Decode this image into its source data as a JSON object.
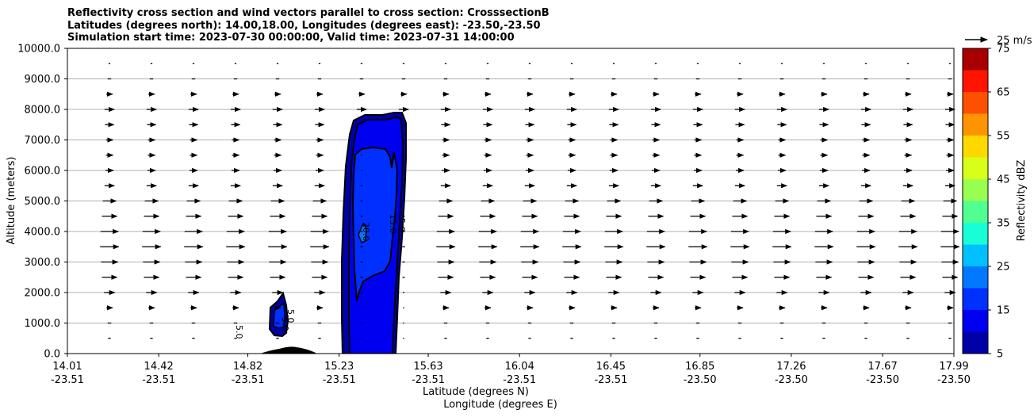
{
  "chart_data": {
    "type": "contour",
    "title_lines": [
      "Reflectivity cross section and wind vectors parallel to cross section: CrosssectionB",
      "Latitudes (degrees north): 14.00,18.00, Longitudes (degrees east): -23.50,-23.50",
      "Simulation start time: 2023-07-30 00:00:00, Valid time: 2023-07-31 14:00:00"
    ],
    "xlabel": "Latitude (degrees N)",
    "xlabel2": "Longitude (degrees E)",
    "ylabel": "Altitude (meters)",
    "ylim": [
      0,
      10000
    ],
    "xlim": [
      14.01,
      17.99
    ],
    "yticks": [
      "0.0",
      "1000.0",
      "2000.0",
      "3000.0",
      "4000.0",
      "5000.0",
      "6000.0",
      "7000.0",
      "8000.0",
      "9000.0",
      "10000.0"
    ],
    "xticks_lat": [
      "14.01",
      "14.42",
      "14.82",
      "15.23",
      "15.63",
      "16.04",
      "16.45",
      "16.85",
      "17.26",
      "17.67",
      "17.99"
    ],
    "xticks_lon": [
      "-23.51",
      "-23.51",
      "-23.51",
      "-23.51",
      "-23.51",
      "-23.51",
      "-23.51",
      "-23.50",
      "-23.50",
      "-23.50",
      "-23.50"
    ],
    "grid": "horizontal",
    "colorbar": {
      "label": "Reflectivity dBZ",
      "ticks": [
        "5",
        "15",
        "25",
        "35",
        "45",
        "55",
        "65",
        "75"
      ],
      "levels": [
        5,
        10,
        15,
        20,
        25,
        30,
        35,
        40,
        45,
        50,
        55,
        60,
        65,
        70,
        75
      ],
      "colors": [
        "#0000a8",
        "#0000f0",
        "#0030ff",
        "#0078ff",
        "#00c0ff",
        "#18ffd8",
        "#50ff90",
        "#98ff50",
        "#d8ff18",
        "#ffd800",
        "#ff9400",
        "#ff5000",
        "#ff1400",
        "#a80000"
      ]
    },
    "contour_labels": [
      "20.0",
      "15.0",
      "5.0",
      "5.0",
      "5.0",
      "5.0"
    ],
    "quiver_key": "25 m/s",
    "wind_vectors": {
      "levels_m": [
        500,
        1000,
        1500,
        2000,
        2500,
        3000,
        3500,
        4000,
        4500,
        5000,
        5500,
        6000,
        6500,
        7000,
        7500,
        8000,
        8500,
        9000,
        9500
      ],
      "speed_profile_ms": [
        3,
        4,
        7,
        12,
        17,
        19,
        21,
        20,
        17,
        15,
        11,
        9,
        8,
        8,
        10,
        11,
        7,
        4,
        2
      ],
      "direction": "parallel, toward increasing latitude"
    },
    "features": [
      {
        "name": "main storm",
        "lat_range": [
          15.24,
          15.48
        ],
        "top_m": 7900,
        "max_dbz": 25
      },
      {
        "name": "small cell",
        "lat_range": [
          14.91,
          15.0
        ],
        "top_m": 2000,
        "max_dbz": 15
      },
      {
        "name": "terrain",
        "lat_range": [
          14.87,
          15.11
        ],
        "peak_m": 200
      }
    ]
  }
}
